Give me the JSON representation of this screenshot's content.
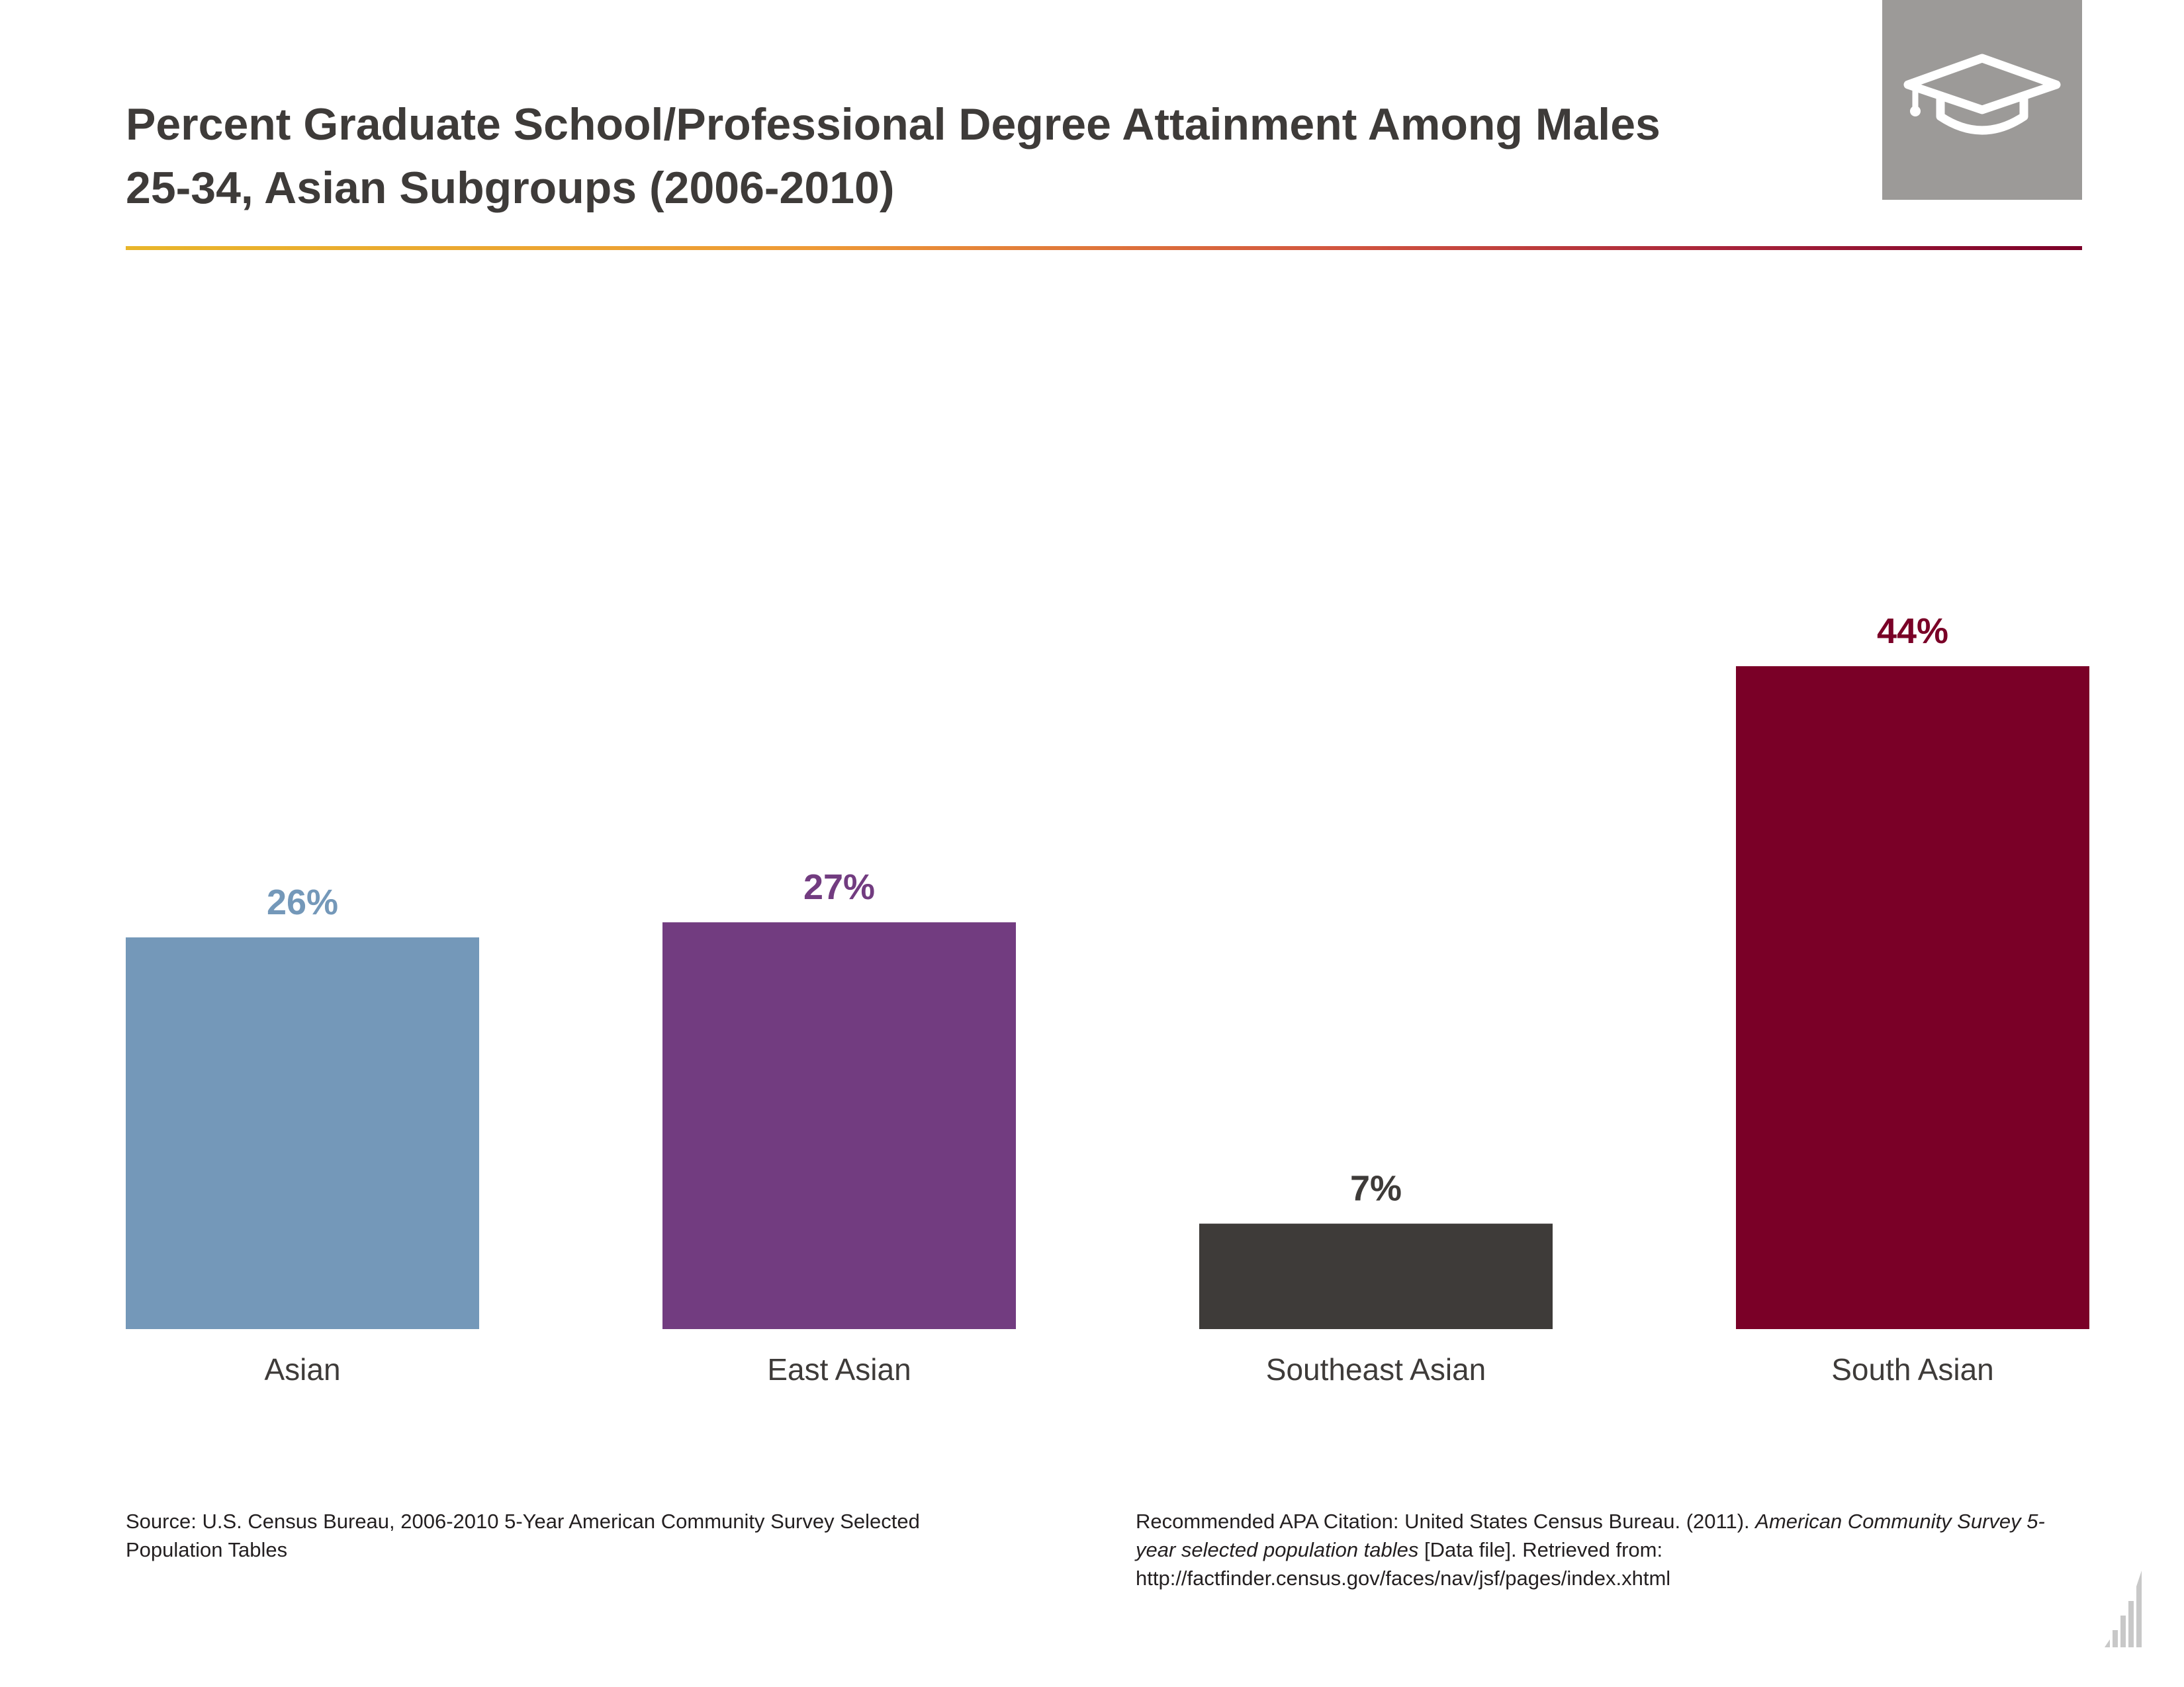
{
  "title": {
    "line1": "Percent Graduate School/Professional Degree Attainment Among Males",
    "line2": "25-34, Asian Subgroups (2006-2010)"
  },
  "header_icon": "graduation-cap-icon",
  "chart_data": {
    "type": "bar",
    "categories": [
      "Asian",
      "East Asian",
      "Southeast Asian",
      "South Asian"
    ],
    "values": [
      26,
      27,
      7,
      44
    ],
    "value_labels": [
      "26%",
      "27%",
      "7%",
      "44%"
    ],
    "colors": [
      "#7498b9",
      "#723c80",
      "#3e3b39",
      "#7a0027"
    ],
    "title": "Percent Graduate School/Professional Degree Attainment Among Males 25-34, Asian Subgroups (2006-2010)",
    "xlabel": "",
    "ylabel": "",
    "ylim": [
      0,
      44
    ],
    "grid": false,
    "legend": "none"
  },
  "footer": {
    "source": "Source: U.S. Census Bureau, 2006-2010 5-Year American Community Survey Selected Population Tables",
    "citation_prefix": "Recommended APA Citation: United States Census Bureau. (2011). ",
    "citation_title": "American Community Survey 5-year selected population tables",
    "citation_suffix": " [Data file]. Retrieved from: http://factfinder.census.gov/faces/nav/jsf/pages/index.xhtml"
  },
  "corner_icon": "bar-chart-logo-icon"
}
